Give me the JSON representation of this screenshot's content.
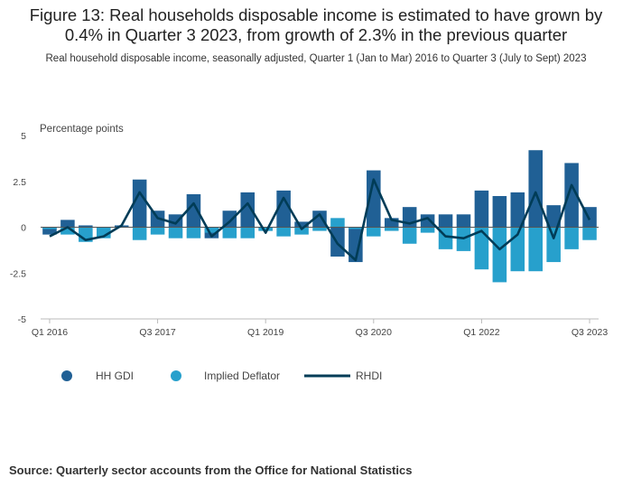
{
  "chart_data": {
    "type": "bar",
    "title": "Figure 13: Real households disposable income is estimated to have grown by 0.4% in Quarter 3 2023, from growth of 2.3% in the previous quarter",
    "subtitle": "Real household disposable income, seasonally adjusted, Quarter 1 (Jan to Mar) 2016 to Quarter 3 (July to Sept) 2023",
    "ylabel": "Percentage points",
    "ylim": [
      -5,
      5
    ],
    "yticks": [
      5,
      2.5,
      0,
      -2.5,
      -5
    ],
    "ytick_labels": [
      "5",
      "2.5",
      "0",
      "-2.5",
      "-5"
    ],
    "xtick_labels": [
      {
        "index": 0,
        "label": "Q1 2016"
      },
      {
        "index": 6,
        "label": "Q3 2017"
      },
      {
        "index": 12,
        "label": "Q1 2019"
      },
      {
        "index": 18,
        "label": "Q3 2020"
      },
      {
        "index": 24,
        "label": "Q1 2022"
      },
      {
        "index": 30,
        "label": "Q3 2023"
      }
    ],
    "categories": [
      "Q1 2016",
      "Q2 2016",
      "Q3 2016",
      "Q4 2016",
      "Q1 2017",
      "Q2 2017",
      "Q3 2017",
      "Q4 2017",
      "Q1 2018",
      "Q2 2018",
      "Q3 2018",
      "Q4 2018",
      "Q1 2019",
      "Q2 2019",
      "Q3 2019",
      "Q4 2019",
      "Q1 2020",
      "Q2 2020",
      "Q3 2020",
      "Q4 2020",
      "Q1 2021",
      "Q2 2021",
      "Q3 2021",
      "Q4 2021",
      "Q1 2022",
      "Q2 2022",
      "Q3 2022",
      "Q4 2022",
      "Q1 2023",
      "Q2 2023",
      "Q3 2023"
    ],
    "series": [
      {
        "name": "HH GDI",
        "type": "bar",
        "color": "#206095",
        "values": [
          -0.4,
          0.4,
          0.1,
          -0.5,
          0.1,
          2.6,
          0.9,
          0.7,
          1.8,
          -0.6,
          0.9,
          1.9,
          -0.2,
          2.0,
          0.3,
          0.9,
          -1.6,
          -1.9,
          3.1,
          0.5,
          1.1,
          0.7,
          0.7,
          0.7,
          2.0,
          1.7,
          1.9,
          4.2,
          1.2,
          3.5,
          1.1
        ]
      },
      {
        "name": "Implied Deflator",
        "type": "bar",
        "color": "#27a0cc",
        "values": [
          -0.1,
          -0.4,
          -0.8,
          -0.6,
          0.0,
          -0.7,
          -0.4,
          -0.6,
          -0.6,
          -0.3,
          -0.6,
          -0.6,
          -0.2,
          -0.5,
          -0.4,
          -0.2,
          0.5,
          -0.1,
          -0.5,
          -0.2,
          -0.9,
          -0.3,
          -1.2,
          -1.3,
          -2.3,
          -3.0,
          -2.4,
          -2.4,
          -1.9,
          -1.2,
          -0.7
        ]
      },
      {
        "name": "RHDI",
        "type": "line",
        "color": "#003c57",
        "values": [
          -0.5,
          0.0,
          -0.7,
          -0.5,
          0.1,
          1.9,
          0.5,
          0.2,
          1.3,
          -0.5,
          0.3,
          1.3,
          -0.3,
          1.6,
          -0.1,
          0.7,
          -0.9,
          -1.8,
          2.6,
          0.4,
          0.2,
          0.5,
          -0.5,
          -0.6,
          -0.2,
          -1.2,
          -0.4,
          1.9,
          -0.6,
          2.3,
          0.4
        ]
      }
    ],
    "legend_position": "bottom-left",
    "grid": false
  },
  "legend": [
    {
      "label": "HH GDI",
      "marker": "circle",
      "color": "#206095"
    },
    {
      "label": "Implied Deflator",
      "marker": "circle",
      "color": "#27a0cc"
    },
    {
      "label": "RHDI",
      "marker": "line",
      "color": "#003c57"
    }
  ],
  "source": "Source: Quarterly sector accounts from the Office for National Statistics"
}
